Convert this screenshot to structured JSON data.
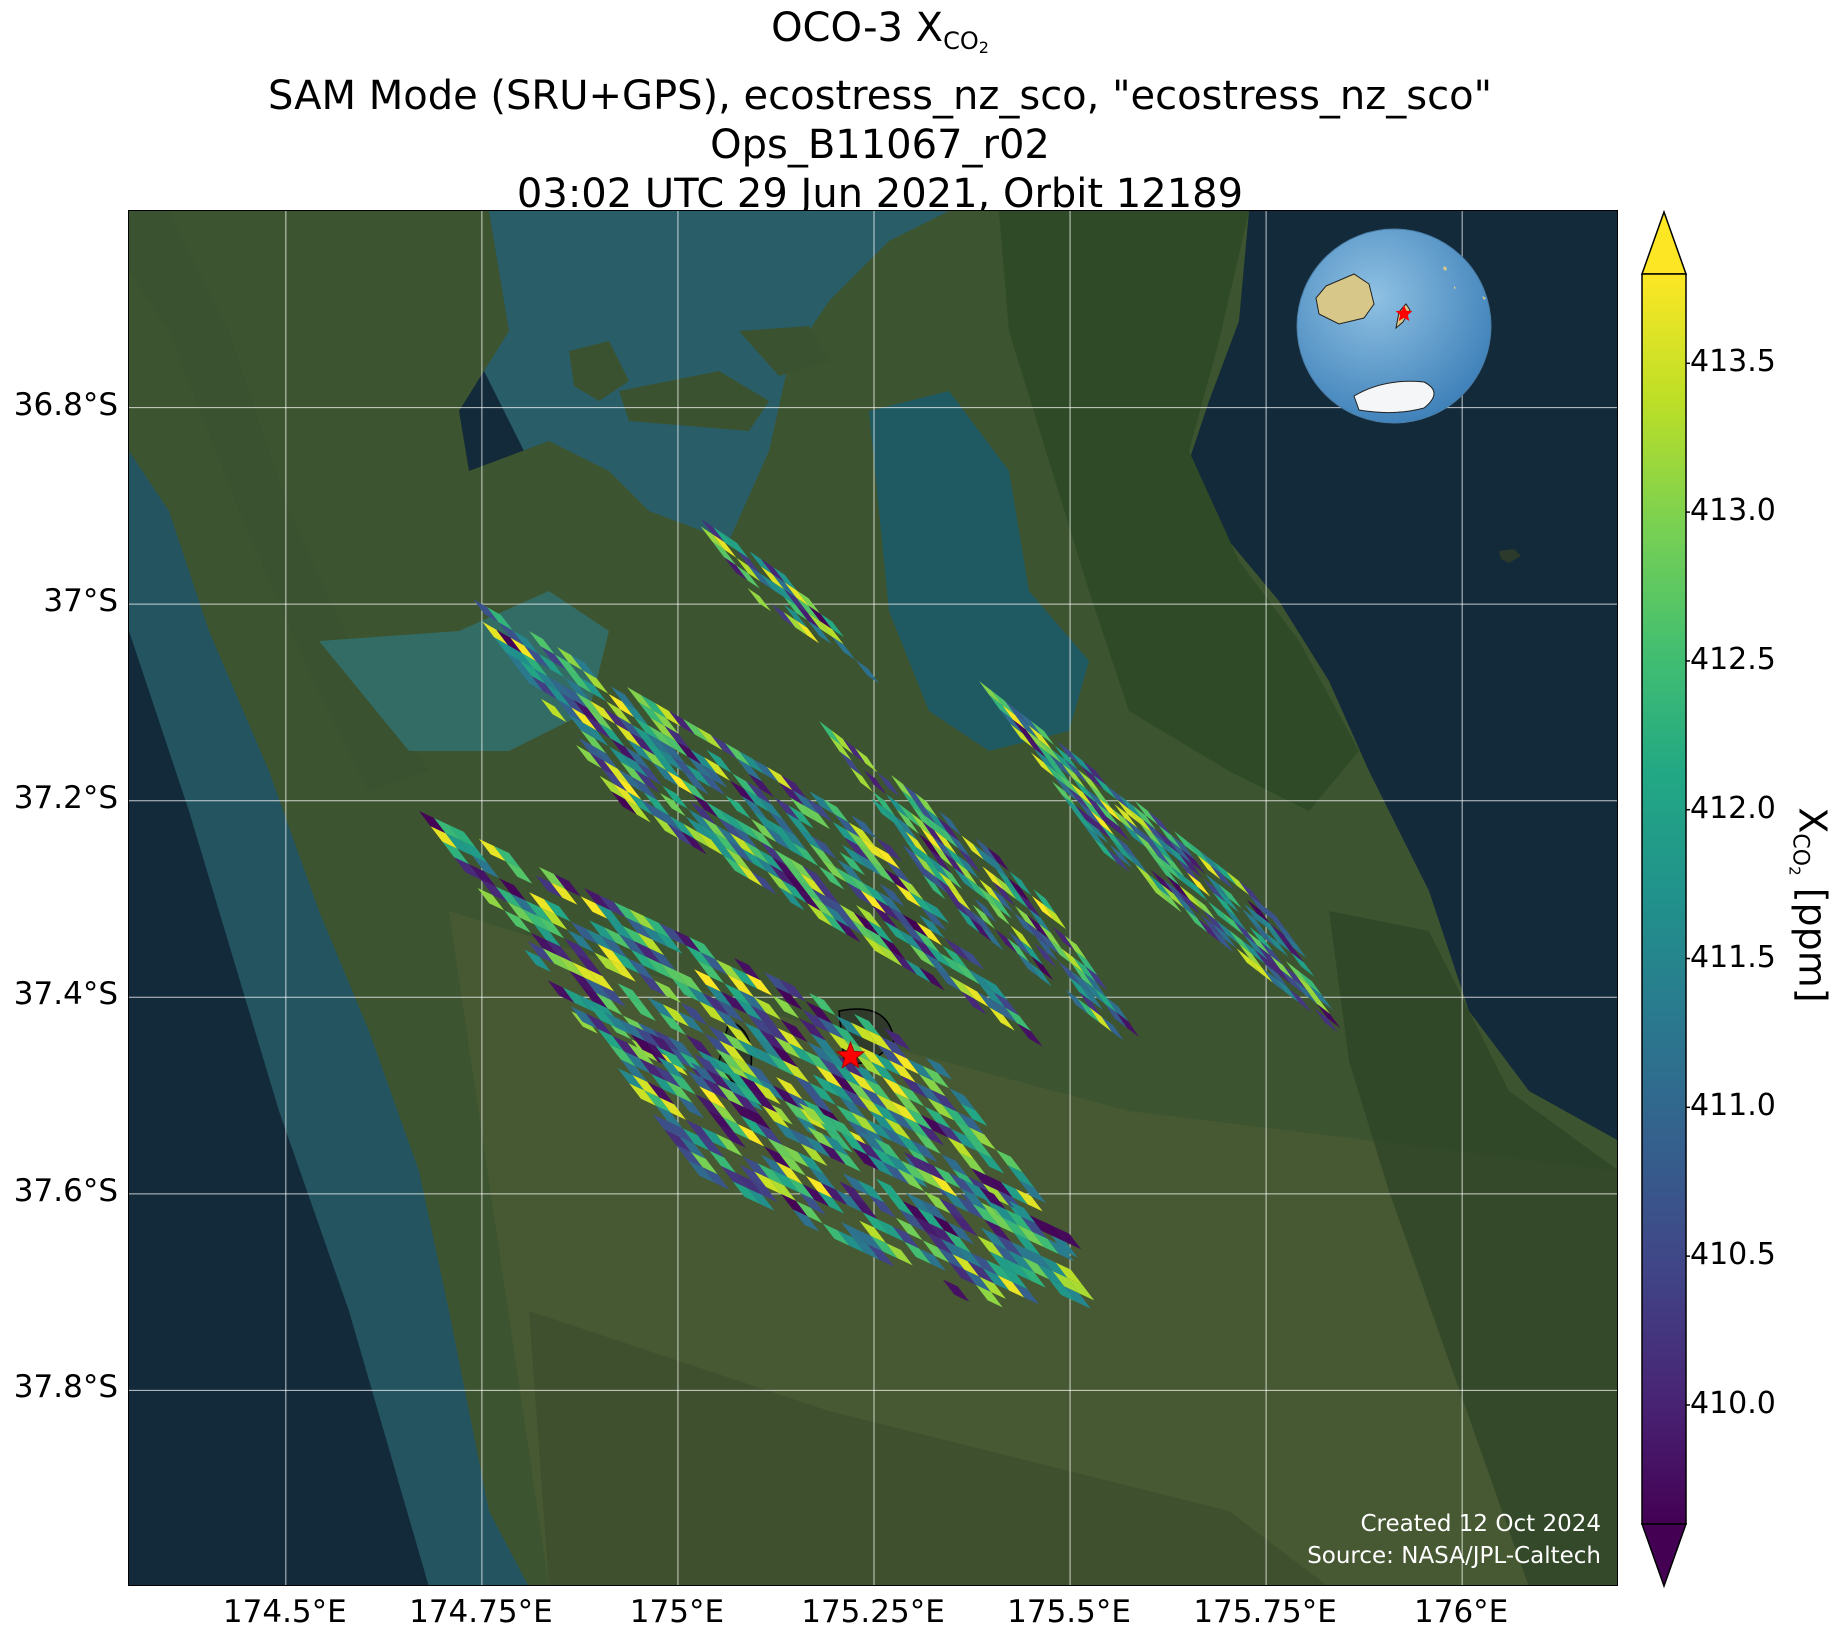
{
  "title": {
    "line1_main": "OCO-3 X",
    "line1_sub": "CO",
    "line1_sub2": "2",
    "line2": "SAM Mode (SRU+GPS), ecostress_nz_sco, \"ecostress_nz_sco\"",
    "line3": "Ops_B11067_r02",
    "line4": "03:02 UTC 29 Jun 2021, Orbit 12189"
  },
  "axes": {
    "lat_ticks": [
      "36.8°S",
      "37°S",
      "37.2°S",
      "37.4°S",
      "37.6°S",
      "37.8°S"
    ],
    "lon_ticks": [
      "174.5°E",
      "174.75°E",
      "175°E",
      "175.25°E",
      "175.5°E",
      "175.75°E",
      "176°E"
    ],
    "lat_values": [
      -36.8,
      -37.0,
      -37.2,
      -37.4,
      -37.6,
      -37.8
    ],
    "lon_values": [
      174.5,
      174.75,
      175.0,
      175.25,
      175.5,
      175.75,
      176.0
    ],
    "lat_range": [
      -38.0,
      -36.6
    ],
    "lon_range": [
      174.3,
      176.2
    ],
    "grid": true
  },
  "colorbar": {
    "label_main": "X",
    "label_sub": "CO",
    "label_sub2": "2",
    "label_unit": " [ppm]",
    "ticks": [
      "413.5",
      "413.0",
      "412.5",
      "412.0",
      "411.5",
      "411.0",
      "410.5",
      "410.0"
    ],
    "tick_values": [
      413.5,
      413.0,
      412.5,
      412.0,
      411.5,
      411.0,
      410.5,
      410.0
    ],
    "range": [
      409.6,
      413.8
    ],
    "colormap": "viridis",
    "extend": "both"
  },
  "target": {
    "marker": "star-icon",
    "color": "#ff0000",
    "lon": 175.22,
    "lat": -37.46
  },
  "inset": {
    "type": "globe",
    "marker_color": "#ff0000"
  },
  "credit": {
    "line1": "Created 12 Oct 2024",
    "line2": "Source: NASA/JPL-Caltech"
  },
  "colors": {
    "ocean": "#132a3a",
    "land": "#3f5530",
    "grid": "#ffffff",
    "target": "#ff0000"
  }
}
